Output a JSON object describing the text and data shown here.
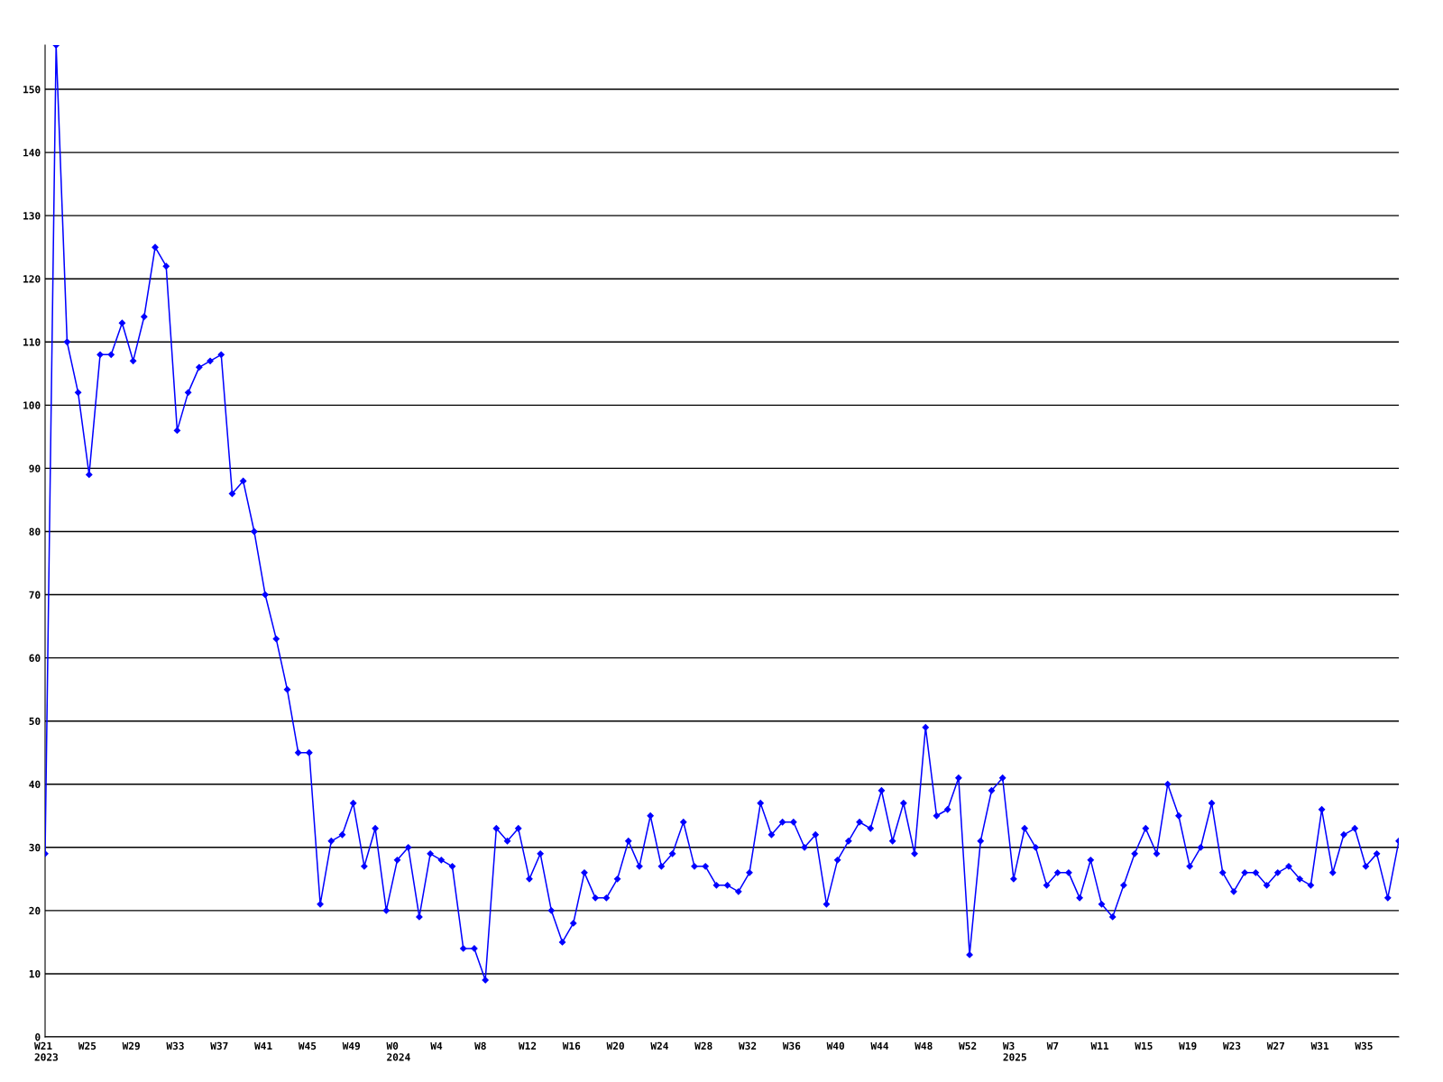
{
  "chart_data": {
    "type": "line",
    "categories": [
      "W21\n2023",
      null,
      null,
      null,
      "W25",
      null,
      null,
      null,
      "W29",
      null,
      null,
      null,
      "W33",
      null,
      null,
      null,
      "W37",
      null,
      null,
      null,
      "W41",
      null,
      null,
      null,
      "W45",
      null,
      null,
      null,
      "W49",
      null,
      null,
      null,
      "W0\n2024",
      null,
      null,
      null,
      "W4",
      null,
      null,
      null,
      "W8",
      null,
      null,
      null,
      "W12",
      null,
      null,
      null,
      "W16",
      null,
      null,
      null,
      "W20",
      null,
      null,
      null,
      "W24",
      null,
      null,
      null,
      "W28",
      null,
      null,
      null,
      "W32",
      null,
      null,
      null,
      "W36",
      null,
      null,
      null,
      "W40",
      null,
      null,
      null,
      "W44",
      null,
      null,
      null,
      "W48",
      null,
      null,
      null,
      "W52",
      null,
      null,
      null,
      "W3\n2025",
      null,
      null,
      null,
      "W7",
      null,
      null,
      null,
      "W11",
      null,
      null,
      null,
      "W15",
      null,
      null,
      null,
      "W19",
      null,
      null,
      null,
      "W23",
      null,
      null,
      null,
      "W27",
      null,
      null,
      null,
      "W31",
      null,
      null,
      null,
      "W35",
      null,
      null,
      null
    ],
    "series": [
      {
        "color": "#0000ff",
        "values": [
          29,
          157,
          110,
          102,
          89,
          108,
          108,
          113,
          107,
          114,
          125,
          122,
          96,
          102,
          106,
          107,
          108,
          86,
          88,
          80,
          70,
          63,
          55,
          45,
          45,
          21,
          31,
          32,
          37,
          27,
          33,
          20,
          28,
          30,
          19,
          29,
          28,
          27,
          14,
          14,
          9,
          33,
          31,
          33,
          25,
          29,
          20,
          15,
          18,
          26,
          22,
          22,
          25,
          31,
          27,
          35,
          27,
          29,
          34,
          27,
          27,
          24,
          24,
          23,
          26,
          37,
          32,
          34,
          34,
          30,
          32,
          21,
          28,
          31,
          34,
          33,
          39,
          31,
          37,
          29,
          49,
          35,
          36,
          41,
          13,
          31,
          39,
          41,
          25,
          33,
          30,
          24,
          26,
          26,
          22,
          28,
          21,
          19,
          24,
          29,
          33,
          29,
          40,
          35,
          27,
          30,
          37,
          26,
          23,
          26,
          26,
          24,
          26,
          27,
          25,
          24,
          36,
          26,
          32,
          33,
          27,
          29,
          22,
          31
        ]
      }
    ],
    "ylim": [
      0,
      157
    ],
    "yticks": [
      0,
      10,
      20,
      30,
      40,
      50,
      60,
      70,
      80,
      90,
      100,
      110,
      120,
      130,
      140,
      150
    ],
    "grid": "y",
    "marker": "diamond",
    "line_style": "solid",
    "legend": false
  }
}
